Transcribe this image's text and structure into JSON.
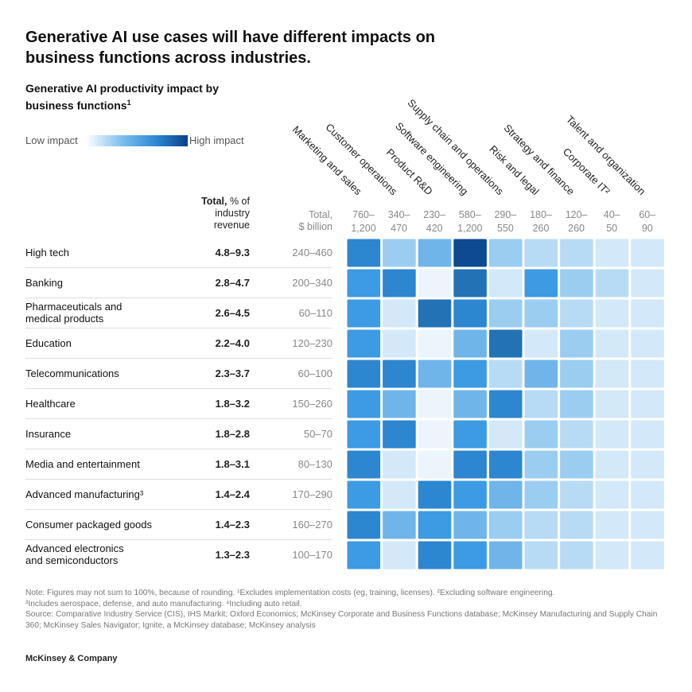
{
  "title": "Generative AI use cases will have different impacts on business functions across industries.",
  "subtitle": "Generative AI productivity impact by business functions",
  "subtitle_footnote": "1",
  "legend": {
    "low": "Low impact",
    "high": "High impact"
  },
  "headers": {
    "pct_bold": "Total,",
    "pct_rest": " % of",
    "pct_line2": "industry",
    "pct_line3": "revenue",
    "bil_line1": "Total,",
    "bil_line2": "$ billion"
  },
  "chart_data": {
    "type": "heatmap",
    "scale": "impact level 0 (low) to 8 (high)",
    "columns": [
      {
        "label": "Marketing and sales",
        "range": [
          "760–",
          "1,200"
        ]
      },
      {
        "label": "Customer operations",
        "range": [
          "340–",
          "470"
        ]
      },
      {
        "label": "Product R&D",
        "range": [
          "230–",
          "420"
        ]
      },
      {
        "label": "Software engineering",
        "range": [
          "580–",
          "1,200"
        ]
      },
      {
        "label": "Supply chain and operations",
        "range": [
          "290–",
          "550"
        ]
      },
      {
        "label": "Risk and legal",
        "range": [
          "180–",
          "260"
        ]
      },
      {
        "label": "Strategy and finance",
        "range": [
          "120–",
          "260"
        ]
      },
      {
        "label": "Corporate IT²",
        "range": [
          "40–",
          "50"
        ]
      },
      {
        "label": "Talent and organization",
        "range": [
          "60–",
          "90"
        ]
      }
    ],
    "rows": [
      {
        "label": [
          "High tech"
        ],
        "pct": "4.8–9.3",
        "billion": "240–460",
        "levels": [
          6,
          3,
          4,
          8,
          3,
          2,
          2,
          1,
          1
        ]
      },
      {
        "label": [
          "Banking"
        ],
        "pct": "2.8–4.7",
        "billion": "200–340",
        "levels": [
          5,
          6,
          0,
          7,
          1,
          5,
          3,
          2,
          1
        ]
      },
      {
        "label": [
          "Pharmaceuticals and",
          "medical products"
        ],
        "pct": "2.6–4.5",
        "billion": "60–110",
        "levels": [
          5,
          1,
          7,
          6,
          3,
          3,
          2,
          1,
          1
        ]
      },
      {
        "label": [
          "Education"
        ],
        "pct": "2.2–4.0",
        "billion": "120–230",
        "levels": [
          5,
          1,
          0,
          4,
          7,
          1,
          3,
          1,
          1
        ]
      },
      {
        "label": [
          "Telecommunications"
        ],
        "pct": "2.3–3.7",
        "billion": "60–100",
        "levels": [
          6,
          6,
          4,
          5,
          2,
          4,
          3,
          1,
          1
        ]
      },
      {
        "label": [
          "Healthcare"
        ],
        "pct": "1.8–3.2",
        "billion": "150–260",
        "levels": [
          5,
          4,
          0,
          4,
          6,
          2,
          3,
          1,
          1
        ]
      },
      {
        "label": [
          "Insurance"
        ],
        "pct": "1.8–2.8",
        "billion": "50–70",
        "levels": [
          5,
          6,
          0,
          5,
          1,
          3,
          2,
          1,
          1
        ]
      },
      {
        "label": [
          "Media and entertainment"
        ],
        "pct": "1.8–3.1",
        "billion": "80–130",
        "levels": [
          6,
          1,
          0,
          6,
          6,
          3,
          3,
          1,
          1
        ]
      },
      {
        "label": [
          "Advanced manufacturing³"
        ],
        "pct": "1.4–2.4",
        "billion": "170–290",
        "levels": [
          5,
          1,
          6,
          5,
          4,
          3,
          2,
          1,
          1
        ]
      },
      {
        "label": [
          "Consumer packaged goods"
        ],
        "pct": "1.4–2.3",
        "billion": "160–270",
        "levels": [
          6,
          4,
          5,
          4,
          3,
          2,
          2,
          1,
          1
        ]
      },
      {
        "label": [
          "Advanced electronics",
          "and semiconductors"
        ],
        "pct": "1.3–2.3",
        "billion": "100–170",
        "levels": [
          5,
          1,
          6,
          5,
          4,
          2,
          2,
          1,
          1
        ]
      }
    ],
    "colors": [
      "#edf5fc",
      "#d3e8f8",
      "#b8dbf5",
      "#9bcdf1",
      "#6fb5ea",
      "#3c9be2",
      "#2d86d0",
      "#2272b5",
      "#0d4a91"
    ]
  },
  "notes": [
    "Note: Figures may not sum to 100%, because of rounding. ¹Excludes implementation costs (eg, training, licenses). ²Excluding software engineering.",
    "³Includes aerospace, defense, and auto manufacturing. ⁴Including auto retail.",
    "Source: Comparative Industry Service (CIS), IHS Markit; Oxford Economics; McKinsey Corporate and Business Functions database; McKinsey Manufacturing and Supply Chain 360; McKinsey Sales Navigator; Ignite, a McKinsey database; McKinsey analysis"
  ],
  "brand": "McKinsey & Company"
}
